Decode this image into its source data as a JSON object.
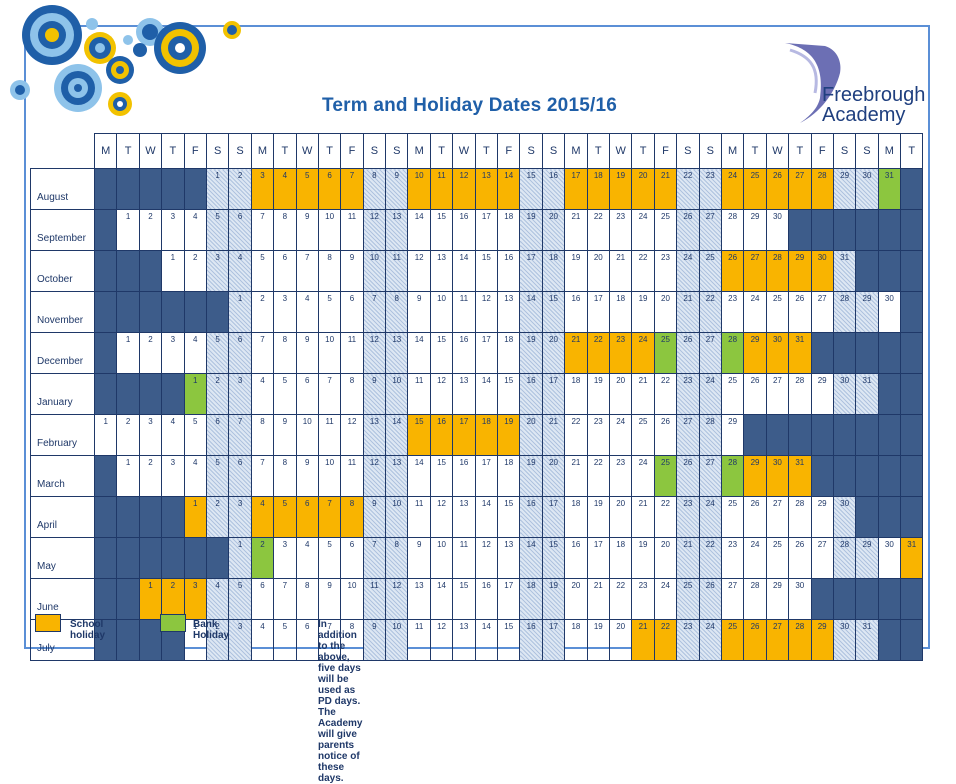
{
  "title": "Term and Holiday Dates 2015/16",
  "logo": {
    "line1": "Freebrough",
    "line2": "Academy"
  },
  "weekday_headers": [
    "M",
    "T",
    "W",
    "T",
    "F",
    "S",
    "S",
    "M",
    "T",
    "W",
    "T",
    "F",
    "S",
    "S",
    "M",
    "T",
    "W",
    "T",
    "F",
    "S",
    "S",
    "M",
    "T",
    "W",
    "T",
    "F",
    "S",
    "S",
    "M",
    "T",
    "W",
    "T",
    "F",
    "S",
    "S",
    "M",
    "T"
  ],
  "months": [
    {
      "name": "August",
      "start": 5,
      "days": 31,
      "holidays": [
        3,
        4,
        5,
        6,
        7,
        10,
        11,
        12,
        13,
        14,
        17,
        18,
        19,
        20,
        21,
        24,
        25,
        26,
        27,
        28
      ],
      "bank": [
        31
      ]
    },
    {
      "name": "September",
      "start": 1,
      "days": 30,
      "holidays": [],
      "bank": []
    },
    {
      "name": "October",
      "start": 3,
      "days": 31,
      "holidays": [
        26,
        27,
        28,
        29,
        30
      ],
      "bank": []
    },
    {
      "name": "November",
      "start": 6,
      "days": 30,
      "holidays": [],
      "bank": []
    },
    {
      "name": "December",
      "start": 1,
      "days": 31,
      "holidays": [
        21,
        22,
        23,
        24,
        29,
        30,
        31
      ],
      "bank": [
        25,
        28
      ]
    },
    {
      "name": "January",
      "start": 4,
      "days": 31,
      "holidays": [],
      "bank": [
        1
      ]
    },
    {
      "name": "February",
      "start": 0,
      "days": 29,
      "holidays": [
        15,
        16,
        17,
        18,
        19
      ],
      "bank": []
    },
    {
      "name": "March",
      "start": 1,
      "days": 31,
      "holidays": [
        29,
        30,
        31
      ],
      "bank": [
        25,
        28
      ]
    },
    {
      "name": "April",
      "start": 4,
      "days": 30,
      "holidays": [
        1,
        4,
        5,
        6,
        7,
        8
      ],
      "bank": []
    },
    {
      "name": "May",
      "start": 6,
      "days": 31,
      "holidays": [
        31
      ],
      "bank": [
        2
      ]
    },
    {
      "name": "June",
      "start": 2,
      "days": 30,
      "holidays": [
        1,
        2,
        3
      ],
      "bank": []
    },
    {
      "name": "July",
      "start": 4,
      "days": 31,
      "holidays": [
        21,
        22,
        25,
        26,
        27,
        28,
        29
      ],
      "bank": []
    }
  ],
  "legend": {
    "school_holiday": "School holiday",
    "bank_holiday": "Bank Holiday",
    "note": "In addition to the above, five days will be used as PD days.  The Academy will give parents notice of these days."
  },
  "colors": {
    "school_holiday": "#f9b400",
    "bank_holiday": "#8cc63f",
    "empty_cell": "#3d5c8a",
    "border": "#1f3868",
    "title": "#1f5fa8"
  }
}
